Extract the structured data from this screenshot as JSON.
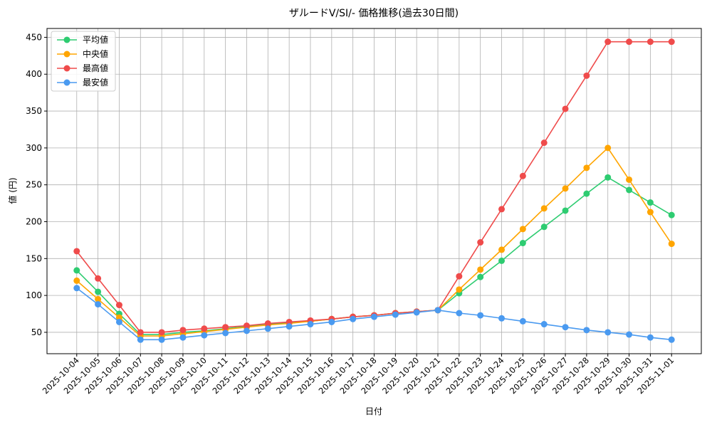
{
  "chart_data": {
    "type": "line",
    "title": "ザルードV/SI/- 価格推移(過去30日間)",
    "x_label": "日付",
    "y_label": "値 (円)",
    "categories": [
      "2025-10-04",
      "2025-10-05",
      "2025-10-06",
      "2025-10-07",
      "2025-10-08",
      "2025-10-09",
      "2025-10-10",
      "2025-10-11",
      "2025-10-12",
      "2025-10-13",
      "2025-10-14",
      "2025-10-15",
      "2025-10-16",
      "2025-10-17",
      "2025-10-18",
      "2025-10-19",
      "2025-10-20",
      "2025-10-21",
      "2025-10-22",
      "2025-10-23",
      "2025-10-24",
      "2025-10-25",
      "2025-10-26",
      "2025-10-27",
      "2025-10-28",
      "2025-10-29",
      "2025-10-30",
      "2025-10-31",
      "2025-11-01"
    ],
    "series": [
      {
        "name": "平均値",
        "color": "#2ecc71",
        "values": [
          134,
          105,
          75,
          47,
          47,
          50,
          52,
          55,
          58,
          61,
          63,
          65,
          68,
          71,
          73,
          76,
          78,
          80,
          103,
          125,
          147,
          171,
          193,
          215,
          238,
          260,
          243,
          226,
          209
        ]
      },
      {
        "name": "中央値",
        "color": "#ffa500",
        "values": [
          120,
          95,
          70,
          45,
          45,
          48,
          51,
          54,
          57,
          60,
          62,
          65,
          68,
          71,
          73,
          76,
          78,
          80,
          108,
          135,
          162,
          190,
          218,
          245,
          273,
          300,
          257,
          213,
          170
        ]
      },
      {
        "name": "最高値",
        "color": "#ef4b4b",
        "values": [
          160,
          123,
          87,
          50,
          50,
          53,
          55,
          57,
          59,
          62,
          64,
          66,
          68,
          71,
          73,
          76,
          78,
          80,
          126,
          172,
          217,
          262,
          307,
          353,
          398,
          444,
          444,
          444,
          444
        ]
      },
      {
        "name": "最安値",
        "color": "#4a9af0",
        "values": [
          110,
          88,
          64,
          40,
          40,
          43,
          46,
          49,
          52,
          55,
          58,
          61,
          64,
          68,
          71,
          74,
          77,
          80,
          76,
          73,
          69,
          65,
          61,
          57,
          53,
          50,
          47,
          43,
          40
        ]
      }
    ],
    "ylim": [
      21,
      462
    ],
    "yticks": [
      50,
      100,
      150,
      200,
      250,
      300,
      350,
      400,
      450
    ],
    "grid": true,
    "legend": "upper-left"
  }
}
